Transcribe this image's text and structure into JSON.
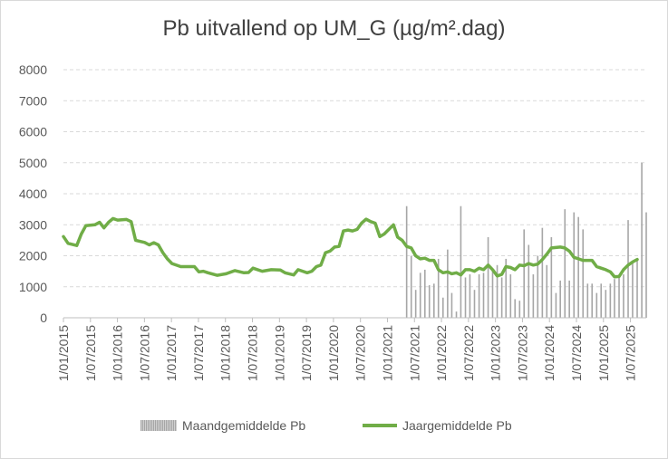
{
  "chart_data": {
    "type": "bar",
    "title": "Pb uitvallend op UM_G (µg/m².dag)",
    "ylim": [
      0,
      8000
    ],
    "y_ticks": [
      "0",
      "1000",
      "2000",
      "3000",
      "4000",
      "5000",
      "6000",
      "7000",
      "8000"
    ],
    "x_ticks": [
      "1/01/2015",
      "1/07/2015",
      "1/01/2016",
      "1/07/2016",
      "1/01/2017",
      "1/07/2017",
      "1/01/2018",
      "1/07/2018",
      "1/01/2019",
      "1/07/2019",
      "1/01/2020",
      "1/07/2020",
      "1/01/2021",
      "1/07/2021",
      "1/01/2022",
      "1/07/2022",
      "1/01/2023",
      "1/07/2023",
      "1/01/2024",
      "1/07/2024",
      "1/01/2025",
      "1/07/2025"
    ],
    "x_range": [
      "2015-01-01",
      "2025-10-01"
    ],
    "grid": true,
    "legend_position": "bottom",
    "series": [
      {
        "name": "Maandgemiddelde Pb",
        "kind": "bar",
        "color": "#a6a6a6",
        "points": [
          [
            "2021-05-01",
            3600
          ],
          [
            "2021-06-01",
            2000
          ],
          [
            "2021-07-01",
            900
          ],
          [
            "2021-08-01",
            1450
          ],
          [
            "2021-09-01",
            1550
          ],
          [
            "2021-10-01",
            1050
          ],
          [
            "2021-11-01",
            1100
          ],
          [
            "2021-12-01",
            1900
          ],
          [
            "2022-01-01",
            650
          ],
          [
            "2022-02-01",
            2200
          ],
          [
            "2022-03-01",
            800
          ],
          [
            "2022-04-01",
            200
          ],
          [
            "2022-05-01",
            3600
          ],
          [
            "2022-06-01",
            1300
          ],
          [
            "2022-07-01",
            1400
          ],
          [
            "2022-08-01",
            900
          ],
          [
            "2022-09-01",
            1400
          ],
          [
            "2022-10-01",
            1450
          ],
          [
            "2022-11-01",
            2600
          ],
          [
            "2022-12-01",
            1500
          ],
          [
            "2023-01-01",
            1700
          ],
          [
            "2023-02-01",
            1300
          ],
          [
            "2023-03-01",
            1900
          ],
          [
            "2023-04-01",
            1400
          ],
          [
            "2023-05-01",
            600
          ],
          [
            "2023-06-01",
            550
          ],
          [
            "2023-07-01",
            2850
          ],
          [
            "2023-08-01",
            2350
          ],
          [
            "2023-09-01",
            1400
          ],
          [
            "2023-10-01",
            2000
          ],
          [
            "2023-11-01",
            2900
          ],
          [
            "2023-12-01",
            1700
          ],
          [
            "2024-01-01",
            2600
          ],
          [
            "2024-02-01",
            800
          ],
          [
            "2024-03-01",
            1200
          ],
          [
            "2024-04-01",
            3500
          ],
          [
            "2024-05-01",
            1200
          ],
          [
            "2024-06-01",
            3400
          ],
          [
            "2024-07-01",
            3250
          ],
          [
            "2024-08-01",
            2850
          ],
          [
            "2024-09-01",
            1100
          ],
          [
            "2024-10-01",
            1100
          ],
          [
            "2024-11-01",
            800
          ],
          [
            "2024-12-01",
            1100
          ],
          [
            "2025-01-01",
            900
          ],
          [
            "2025-02-01",
            1100
          ],
          [
            "2025-03-01",
            1250
          ],
          [
            "2025-04-01",
            1300
          ],
          [
            "2025-05-01",
            1400
          ],
          [
            "2025-06-01",
            3150
          ],
          [
            "2025-07-01",
            1800
          ],
          [
            "2025-08-01",
            1900
          ],
          [
            "2025-09-01",
            5000
          ],
          [
            "2025-10-01",
            3400
          ]
        ]
      },
      {
        "name": "Jaargemiddelde Pb",
        "kind": "line",
        "color": "#70ad47",
        "points": [
          [
            "2015-01-01",
            2620
          ],
          [
            "2015-02-01",
            2400
          ],
          [
            "2015-04-01",
            2330
          ],
          [
            "2015-05-01",
            2700
          ],
          [
            "2015-06-01",
            2970
          ],
          [
            "2015-08-01",
            3000
          ],
          [
            "2015-09-01",
            3080
          ],
          [
            "2015-10-01",
            2900
          ],
          [
            "2015-11-01",
            3080
          ],
          [
            "2015-12-01",
            3200
          ],
          [
            "2016-01-01",
            3150
          ],
          [
            "2016-03-01",
            3170
          ],
          [
            "2016-04-01",
            3100
          ],
          [
            "2016-05-01",
            2500
          ],
          [
            "2016-07-01",
            2430
          ],
          [
            "2016-08-01",
            2350
          ],
          [
            "2016-09-01",
            2420
          ],
          [
            "2016-10-01",
            2350
          ],
          [
            "2016-11-01",
            2100
          ],
          [
            "2016-12-01",
            1900
          ],
          [
            "2017-01-01",
            1750
          ],
          [
            "2017-03-01",
            1650
          ],
          [
            "2017-05-01",
            1650
          ],
          [
            "2017-06-01",
            1650
          ],
          [
            "2017-07-01",
            1480
          ],
          [
            "2017-08-01",
            1500
          ],
          [
            "2017-09-01",
            1450
          ],
          [
            "2017-11-01",
            1370
          ],
          [
            "2018-01-01",
            1420
          ],
          [
            "2018-03-01",
            1520
          ],
          [
            "2018-05-01",
            1450
          ],
          [
            "2018-06-01",
            1460
          ],
          [
            "2018-07-01",
            1600
          ],
          [
            "2018-09-01",
            1500
          ],
          [
            "2018-11-01",
            1550
          ],
          [
            "2019-01-01",
            1540
          ],
          [
            "2019-02-01",
            1450
          ],
          [
            "2019-04-01",
            1380
          ],
          [
            "2019-05-01",
            1550
          ],
          [
            "2019-06-01",
            1500
          ],
          [
            "2019-07-01",
            1450
          ],
          [
            "2019-08-01",
            1500
          ],
          [
            "2019-09-01",
            1650
          ],
          [
            "2019-10-01",
            1700
          ],
          [
            "2019-11-01",
            2100
          ],
          [
            "2019-12-01",
            2150
          ],
          [
            "2020-01-01",
            2280
          ],
          [
            "2020-02-01",
            2300
          ],
          [
            "2020-03-01",
            2800
          ],
          [
            "2020-04-01",
            2830
          ],
          [
            "2020-05-01",
            2800
          ],
          [
            "2020-06-01",
            2850
          ],
          [
            "2020-07-01",
            3050
          ],
          [
            "2020-08-01",
            3180
          ],
          [
            "2020-09-01",
            3100
          ],
          [
            "2020-10-01",
            3050
          ],
          [
            "2020-11-01",
            2620
          ],
          [
            "2020-12-01",
            2700
          ],
          [
            "2021-02-01",
            3000
          ],
          [
            "2021-03-01",
            2600
          ],
          [
            "2021-04-01",
            2500
          ],
          [
            "2021-05-01",
            2300
          ],
          [
            "2021-06-01",
            2250
          ],
          [
            "2021-07-01",
            2000
          ],
          [
            "2021-08-01",
            1900
          ],
          [
            "2021-09-01",
            1920
          ],
          [
            "2021-10-01",
            1850
          ],
          [
            "2021-11-01",
            1850
          ],
          [
            "2021-12-01",
            1550
          ],
          [
            "2022-01-01",
            1450
          ],
          [
            "2022-02-01",
            1480
          ],
          [
            "2022-03-01",
            1420
          ],
          [
            "2022-04-01",
            1450
          ],
          [
            "2022-05-01",
            1380
          ],
          [
            "2022-06-01",
            1550
          ],
          [
            "2022-07-01",
            1550
          ],
          [
            "2022-08-01",
            1500
          ],
          [
            "2022-09-01",
            1600
          ],
          [
            "2022-10-01",
            1550
          ],
          [
            "2022-11-01",
            1700
          ],
          [
            "2022-12-01",
            1550
          ],
          [
            "2023-01-01",
            1350
          ],
          [
            "2023-02-01",
            1400
          ],
          [
            "2023-03-01",
            1650
          ],
          [
            "2023-04-01",
            1620
          ],
          [
            "2023-05-01",
            1550
          ],
          [
            "2023-06-01",
            1700
          ],
          [
            "2023-07-01",
            1680
          ],
          [
            "2023-08-01",
            1750
          ],
          [
            "2023-09-01",
            1700
          ],
          [
            "2023-10-01",
            1730
          ],
          [
            "2023-11-01",
            1880
          ],
          [
            "2023-12-01",
            2050
          ],
          [
            "2024-01-01",
            2250
          ],
          [
            "2024-03-01",
            2280
          ],
          [
            "2024-04-01",
            2250
          ],
          [
            "2024-05-01",
            2150
          ],
          [
            "2024-06-01",
            1950
          ],
          [
            "2024-07-01",
            1900
          ],
          [
            "2024-08-01",
            1850
          ],
          [
            "2024-10-01",
            1850
          ],
          [
            "2024-11-01",
            1650
          ],
          [
            "2024-12-01",
            1600
          ],
          [
            "2025-01-01",
            1550
          ],
          [
            "2025-02-01",
            1480
          ],
          [
            "2025-03-01",
            1320
          ],
          [
            "2025-04-01",
            1330
          ],
          [
            "2025-05-01",
            1550
          ],
          [
            "2025-06-01",
            1700
          ],
          [
            "2025-07-01",
            1800
          ],
          [
            "2025-08-01",
            1880
          ]
        ]
      }
    ]
  }
}
